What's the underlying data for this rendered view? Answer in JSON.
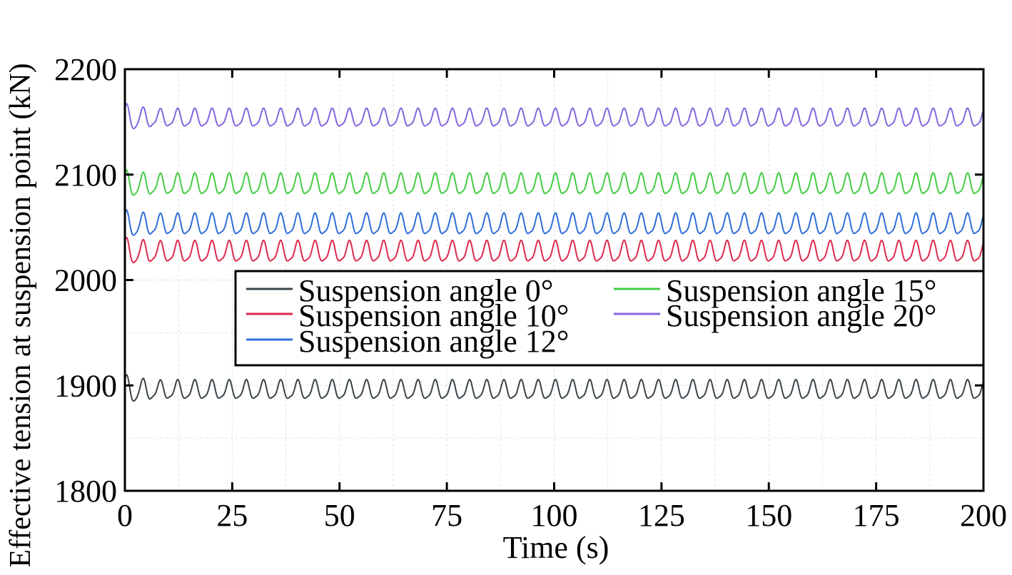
{
  "chart_data": {
    "type": "line",
    "title": "",
    "xlabel": "Time (s)",
    "ylabel": "Effective tension at suspension point (kN)",
    "xlim": [
      0,
      200
    ],
    "ylim": [
      1800,
      2200
    ],
    "xticks": [
      0,
      25,
      50,
      75,
      100,
      125,
      150,
      175,
      200
    ],
    "yticks": [
      1800,
      1900,
      2000,
      2100,
      2200
    ],
    "grid": true,
    "legend_placement": "center-right",
    "series": [
      {
        "name": "Suspension angle 0°",
        "color": "#3a4449",
        "mean": 1895,
        "amplitude": 10,
        "period_s": 4.0,
        "initial_min": 1877
      },
      {
        "name": "Suspension angle 10°",
        "color": "#dc2a4c",
        "mean": 2026,
        "amplitude": 11,
        "period_s": 4.0,
        "initial_min": 2010
      },
      {
        "name": "Suspension angle 12°",
        "color": "#2f6fd9",
        "mean": 2052,
        "amplitude": 11,
        "period_s": 4.0,
        "initial_min": 2036
      },
      {
        "name": "Suspension angle 15°",
        "color": "#44cc44",
        "mean": 2090,
        "amplitude": 11,
        "period_s": 4.0,
        "initial_min": 2074
      },
      {
        "name": "Suspension angle 20°",
        "color": "#8466e0",
        "mean": 2153,
        "amplitude": 9.5,
        "period_s": 4.0,
        "initial_min": 2136
      }
    ]
  }
}
